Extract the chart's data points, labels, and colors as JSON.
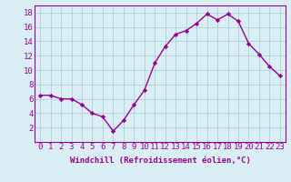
{
  "x": [
    0,
    1,
    2,
    3,
    4,
    5,
    6,
    7,
    8,
    9,
    10,
    11,
    12,
    13,
    14,
    15,
    16,
    17,
    18,
    19,
    20,
    21,
    22,
    23
  ],
  "y": [
    6.5,
    6.5,
    6.0,
    6.0,
    5.2,
    4.0,
    3.5,
    1.5,
    3.0,
    5.2,
    7.2,
    11.0,
    13.3,
    15.0,
    15.5,
    16.5,
    17.8,
    17.0,
    17.8,
    16.8,
    13.7,
    12.2,
    10.5,
    9.2
  ],
  "line_color": "#990099",
  "marker": "D",
  "marker_size": 2.2,
  "bg_color": "#d9eff5",
  "grid_color": "#b0cfd8",
  "xlabel": "Windchill (Refroidissement éolien,°C)",
  "xlim": [
    -0.5,
    23.5
  ],
  "ylim": [
    0,
    19
  ],
  "yticks": [
    2,
    4,
    6,
    8,
    10,
    12,
    14,
    16,
    18
  ],
  "xticks": [
    0,
    1,
    2,
    3,
    4,
    5,
    6,
    7,
    8,
    9,
    10,
    11,
    12,
    13,
    14,
    15,
    16,
    17,
    18,
    19,
    20,
    21,
    22,
    23
  ],
  "xlabel_fontsize": 6.5,
  "tick_fontsize": 6.5,
  "line_width": 1.0
}
